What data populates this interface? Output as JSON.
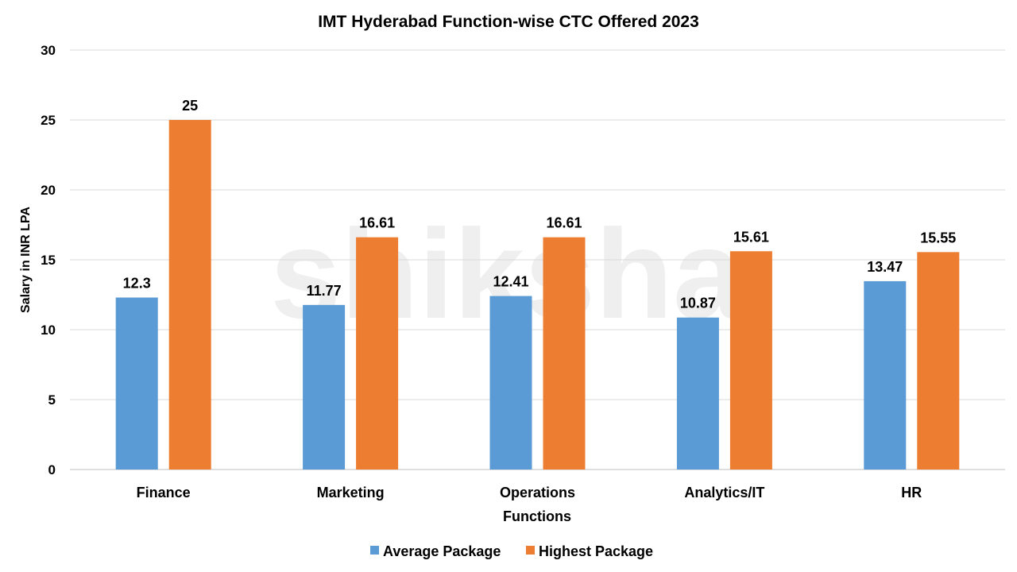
{
  "chart_data": {
    "type": "bar",
    "title": "IMT Hyderabad Function-wise CTC Offered 2023",
    "xlabel": "Functions",
    "ylabel": "Salary in INR LPA",
    "ylim": [
      0,
      30
    ],
    "yticks": [
      0,
      5,
      10,
      15,
      20,
      25,
      30
    ],
    "grid": true,
    "legend_placement": "bottom",
    "categories": [
      "Finance",
      "Marketing",
      "Operations",
      "Analytics/IT",
      "HR"
    ],
    "series": [
      {
        "name": "Average Package",
        "color": "#5B9BD5",
        "values": [
          12.3,
          11.77,
          12.41,
          10.87,
          13.47
        ]
      },
      {
        "name": "Highest Package",
        "color": "#ED7D31",
        "values": [
          25,
          16.61,
          16.61,
          15.61,
          15.55
        ]
      }
    ]
  },
  "watermark": "shiksha"
}
